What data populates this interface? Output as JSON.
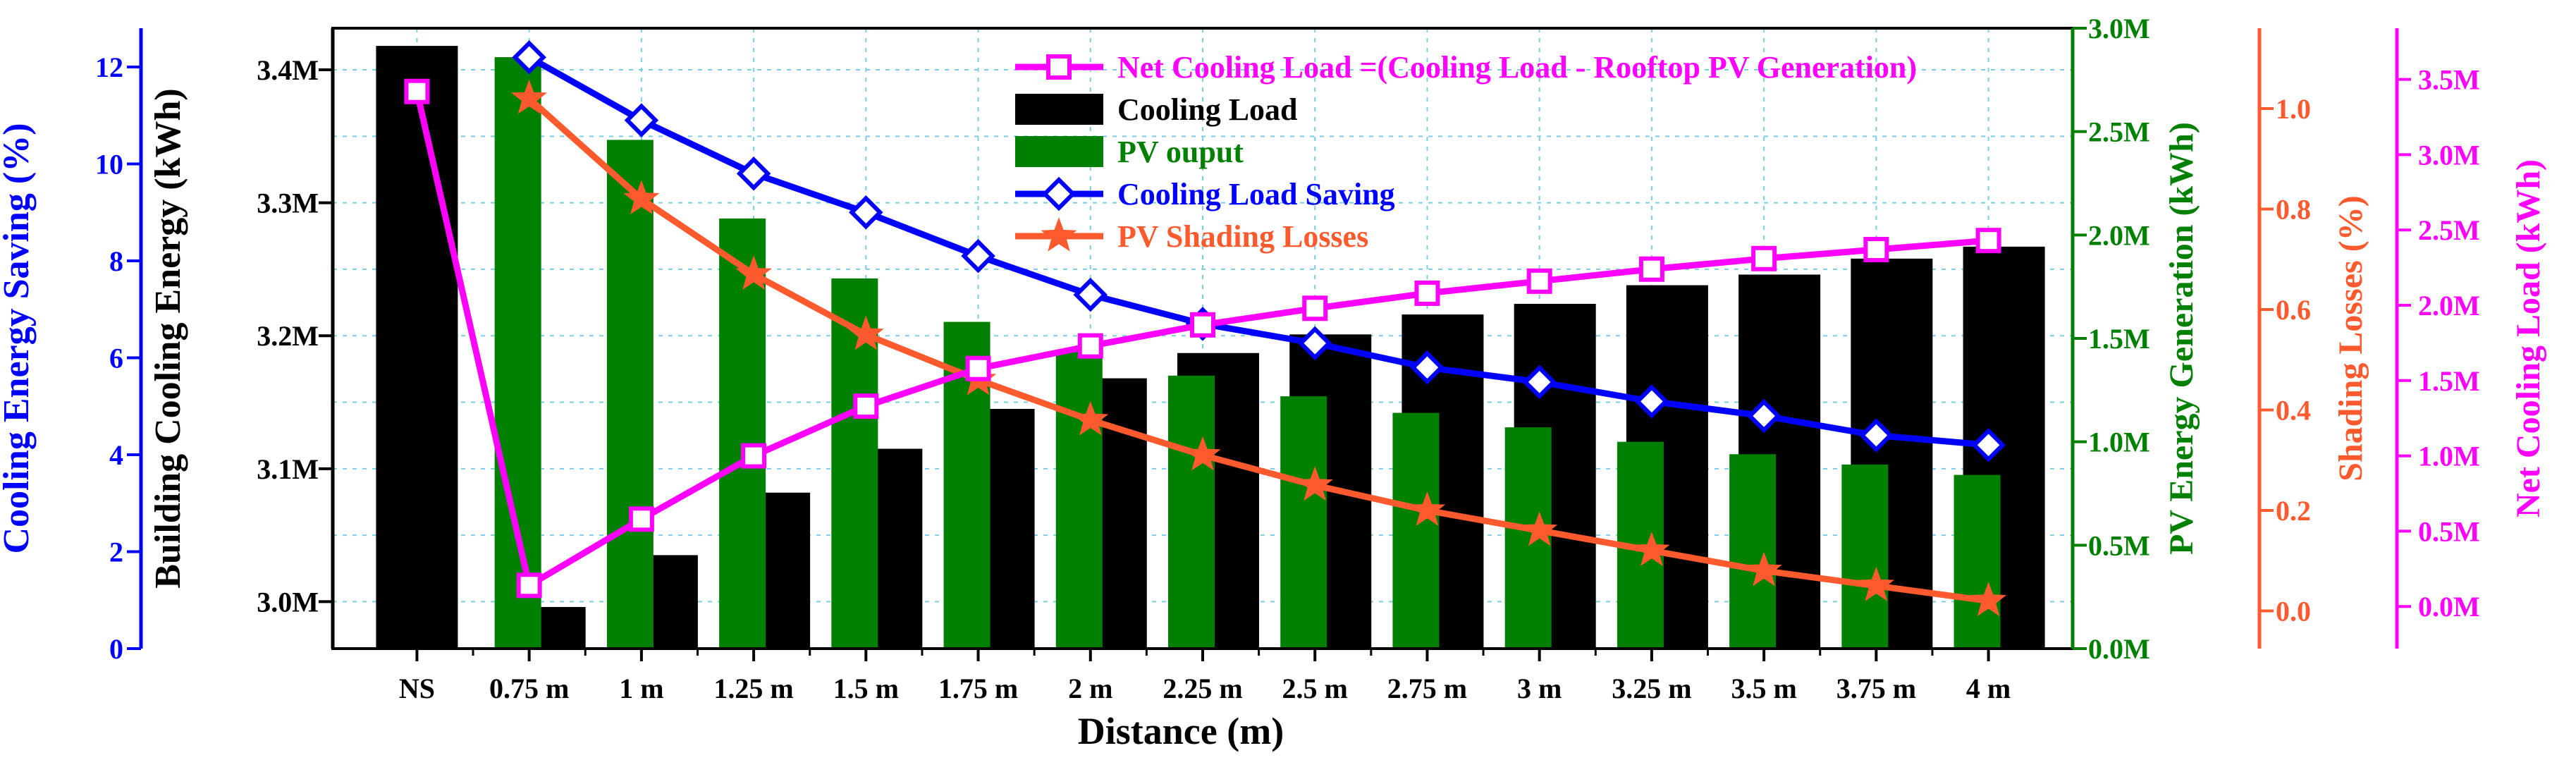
{
  "chart_data": {
    "type": "bar",
    "xlabel": "Distance (m)",
    "categories": [
      "NS",
      "0.75 m",
      "1 m",
      "1.25 m",
      "1.5 m",
      "1.75 m",
      "2 m",
      "2.25 m",
      "2.5 m",
      "2.75 m",
      "3 m",
      "3.25 m",
      "3.5 m",
      "3.75 m",
      "4 m"
    ],
    "axes": {
      "saving": {
        "label": "Cooling Energy Saving (%)",
        "color": "#0000ff",
        "side": "left-outer",
        "range": [
          0,
          12.8
        ],
        "ticks": [
          {
            "v": 0,
            "t": "0"
          },
          {
            "v": 2,
            "t": "2"
          },
          {
            "v": 4,
            "t": "4"
          },
          {
            "v": 6,
            "t": "6"
          },
          {
            "v": 8,
            "t": "8"
          },
          {
            "v": 10,
            "t": "10"
          },
          {
            "v": 12,
            "t": "12"
          }
        ]
      },
      "cooling": {
        "label": "Building Cooling Energy (kWh)",
        "color": "#000000",
        "side": "left-inner",
        "range": [
          2.9647,
          3.4313
        ],
        "ticks": [
          {
            "v": 3.0,
            "t": "3.0M"
          },
          {
            "v": 3.1,
            "t": "3.1M"
          },
          {
            "v": 3.2,
            "t": "3.2M"
          },
          {
            "v": 3.3,
            "t": "3.3M"
          },
          {
            "v": 3.4,
            "t": "3.4M"
          }
        ]
      },
      "pv": {
        "label": "PV Energy Generation (kWh)",
        "color": "#008000",
        "side": "right-1",
        "range": [
          0,
          3.0
        ],
        "ticks": [
          {
            "v": 0,
            "t": "0.0M"
          },
          {
            "v": 0.5,
            "t": "0.5M"
          },
          {
            "v": 1.0,
            "t": "1.0M"
          },
          {
            "v": 1.5,
            "t": "1.5M"
          },
          {
            "v": 2.0,
            "t": "2.0M"
          },
          {
            "v": 2.5,
            "t": "2.5M"
          },
          {
            "v": 3.0,
            "t": "3.0M"
          }
        ]
      },
      "shading": {
        "label": "Shading Losses (%)",
        "color": "#ff5a2e",
        "side": "right-2",
        "range": [
          -0.075,
          1.16
        ],
        "ticks": [
          {
            "v": 0,
            "t": "0.0"
          },
          {
            "v": 0.2,
            "t": "0.2"
          },
          {
            "v": 0.4,
            "t": "0.4"
          },
          {
            "v": 0.6,
            "t": "0.6"
          },
          {
            "v": 0.8,
            "t": "0.8"
          },
          {
            "v": 1.0,
            "t": "1.0"
          }
        ]
      },
      "net": {
        "label": "Net Cooling Load (kWh)",
        "color": "#ff00ff",
        "side": "right-3",
        "range": [
          -0.28,
          3.84
        ],
        "ticks": [
          {
            "v": 0,
            "t": "0.0M"
          },
          {
            "v": 0.5,
            "t": "0.5M"
          },
          {
            "v": 1.0,
            "t": "1.0M"
          },
          {
            "v": 1.5,
            "t": "1.5M"
          },
          {
            "v": 2.0,
            "t": "2.0M"
          },
          {
            "v": 2.5,
            "t": "2.5M"
          },
          {
            "v": 3.0,
            "t": "3.0M"
          },
          {
            "v": 3.5,
            "t": "3.5M"
          }
        ]
      }
    },
    "series": [
      {
        "name": "Cooling Load",
        "type": "bar",
        "axis": "cooling",
        "color": "#000000",
        "values": [
          3.418,
          2.996,
          3.035,
          3.082,
          3.115,
          3.145,
          3.168,
          3.187,
          3.201,
          3.216,
          3.224,
          3.238,
          3.246,
          3.258,
          3.267
        ]
      },
      {
        "name": "PV ouput",
        "type": "bar",
        "axis": "pv",
        "color": "#008000",
        "values": [
          null,
          2.86,
          2.46,
          2.08,
          1.79,
          1.58,
          1.44,
          1.32,
          1.22,
          1.14,
          1.07,
          1.0,
          0.94,
          0.89,
          0.84
        ]
      },
      {
        "name": "Cooling Load Saving",
        "type": "line",
        "axis": "saving",
        "color": "#0000ff",
        "marker": "diamond",
        "values": [
          null,
          12.2,
          10.9,
          9.8,
          9.0,
          8.1,
          7.3,
          6.7,
          6.3,
          5.8,
          5.5,
          5.1,
          4.8,
          4.4,
          4.2
        ]
      },
      {
        "name": "PV Shading Losses",
        "type": "line",
        "axis": "shading",
        "color": "#ff5a2e",
        "marker": "star",
        "values": [
          null,
          1.02,
          0.82,
          0.67,
          0.55,
          0.46,
          0.38,
          0.31,
          0.25,
          0.2,
          0.16,
          0.12,
          0.08,
          0.05,
          0.02
        ]
      },
      {
        "name": "Net Cooling Load =(Cooling Load - Rooftop PV Generation)",
        "type": "line",
        "axis": "net",
        "color": "#ff00ff",
        "marker": "square",
        "values": [
          3.42,
          0.14,
          0.58,
          1.0,
          1.33,
          1.58,
          1.73,
          1.87,
          1.98,
          2.08,
          2.16,
          2.24,
          2.31,
          2.37,
          2.43
        ]
      }
    ],
    "legend": {
      "placement": "top-center",
      "order": [
        4,
        0,
        1,
        2,
        3
      ]
    }
  }
}
